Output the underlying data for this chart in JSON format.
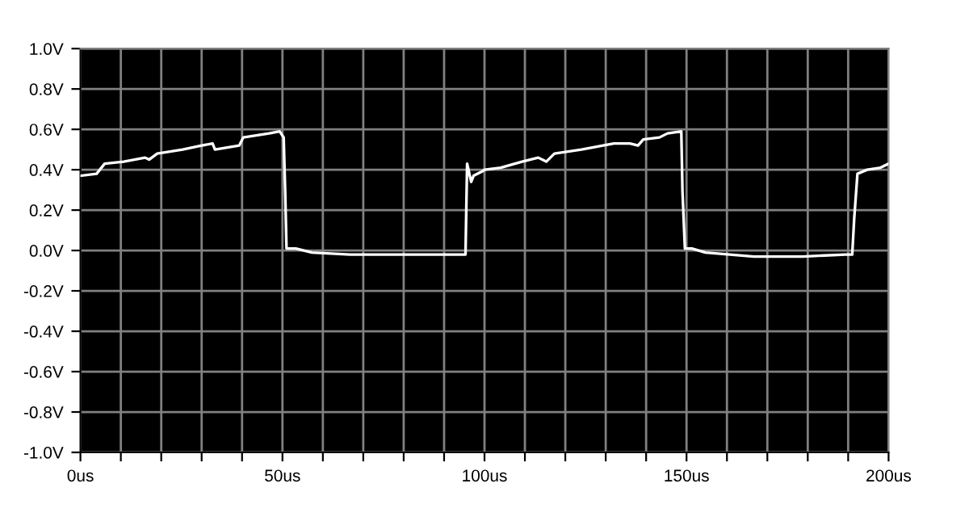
{
  "chart_data": {
    "type": "line",
    "x": [
      0,
      4,
      6,
      10.7,
      16,
      17,
      19,
      25.3,
      30,
      32.7,
      33.3,
      39.3,
      40.3,
      46.7,
      49.3,
      50.3,
      50.7,
      51,
      53.3,
      57.3,
      66.7,
      80,
      92,
      95.3,
      95.5,
      95.7,
      96.7,
      97.3,
      99.3,
      100,
      104,
      109.3,
      113.3,
      115.3,
      117.3,
      124,
      132,
      136,
      138,
      139.3,
      143.3,
      145.3,
      148.7,
      149,
      149.6,
      151.3,
      154.7,
      166.7,
      178.7,
      189.3,
      191,
      191.5,
      192.3,
      194.7,
      198,
      200
    ],
    "series": [
      {
        "color": "#ffffff",
        "values": [
          0.37,
          0.38,
          0.43,
          0.44,
          0.46,
          0.45,
          0.48,
          0.5,
          0.52,
          0.53,
          0.5,
          0.52,
          0.56,
          0.58,
          0.59,
          0.56,
          0.27,
          0.01,
          0.01,
          -0.01,
          -0.02,
          -0.02,
          -0.02,
          -0.02,
          0.21,
          0.43,
          0.34,
          0.37,
          0.39,
          0.4,
          0.41,
          0.44,
          0.46,
          0.44,
          0.48,
          0.5,
          0.53,
          0.53,
          0.52,
          0.55,
          0.56,
          0.58,
          0.59,
          0.29,
          0.01,
          0.01,
          -0.01,
          -0.03,
          -0.03,
          -0.02,
          -0.02,
          0.16,
          0.38,
          0.4,
          0.41,
          0.43
        ]
      }
    ],
    "xlim": [
      0,
      200
    ],
    "xticks": [
      {
        "value": 0,
        "label": "0us"
      },
      {
        "value": 10,
        "label": null
      },
      {
        "value": 20,
        "label": null
      },
      {
        "value": 30,
        "label": null
      },
      {
        "value": 40,
        "label": null
      },
      {
        "value": 50,
        "label": "50us"
      },
      {
        "value": 60,
        "label": null
      },
      {
        "value": 70,
        "label": null
      },
      {
        "value": 80,
        "label": null
      },
      {
        "value": 90,
        "label": null
      },
      {
        "value": 100,
        "label": "100us"
      },
      {
        "value": 110,
        "label": null
      },
      {
        "value": 120,
        "label": null
      },
      {
        "value": 130,
        "label": null
      },
      {
        "value": 140,
        "label": null
      },
      {
        "value": 150,
        "label": "150us"
      },
      {
        "value": 160,
        "label": null
      },
      {
        "value": 170,
        "label": null
      },
      {
        "value": 180,
        "label": null
      },
      {
        "value": 190,
        "label": null
      },
      {
        "value": 200,
        "label": "200us"
      }
    ],
    "ylim": [
      -1.0,
      1.0
    ],
    "yticks": [
      {
        "value": -1.0,
        "label": "-1.0V"
      },
      {
        "value": -0.8,
        "label": "-0.8V"
      },
      {
        "value": -0.6,
        "label": "-0.6V"
      },
      {
        "value": -0.4,
        "label": "-0.4V"
      },
      {
        "value": -0.2,
        "label": "-0.2V"
      },
      {
        "value": 0.0,
        "label": "0.0V"
      },
      {
        "value": 0.2,
        "label": "0.2V"
      },
      {
        "value": 0.4,
        "label": "0.4V"
      },
      {
        "value": 0.6,
        "label": "0.6V"
      },
      {
        "value": 0.8,
        "label": "0.8V"
      },
      {
        "value": 1.0,
        "label": "1.0V"
      }
    ],
    "grid": true,
    "line_style": "solid"
  }
}
